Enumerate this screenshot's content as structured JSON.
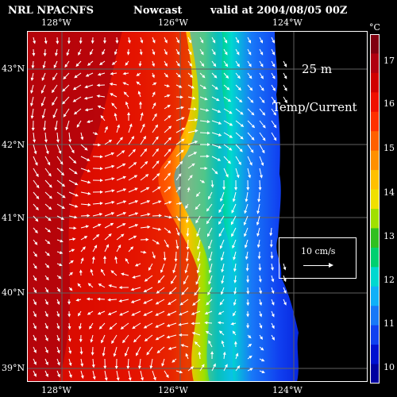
{
  "header": {
    "source": "NRL NPACNFS",
    "mode": "Nowcast",
    "valid": "valid at 2004/08/05 00Z"
  },
  "map": {
    "depth_label": "25 m",
    "variable_label": "Temp/Current",
    "longitude_ticks": [
      "128°W",
      "126°W",
      "124°W"
    ],
    "latitude_ticks": [
      "43°N",
      "42°N",
      "41°N",
      "40°N",
      "39°N"
    ],
    "vector_scale_label": "10 cm/s",
    "colors": {
      "land": "#000000",
      "vectors": "#ffffff",
      "frame": "#ffffff"
    }
  },
  "colorbar": {
    "unit": "°C",
    "tick_labels": [
      "17",
      "16",
      "15",
      "14",
      "13",
      "12",
      "11",
      "10"
    ],
    "colors": [
      "#0000a0",
      "#0010d0",
      "#1040f0",
      "#1878f8",
      "#10b0f8",
      "#00d8d0",
      "#00d070",
      "#30c020",
      "#a0e000",
      "#f0e000",
      "#ffc000",
      "#ff9000",
      "#ff6000",
      "#ff3000",
      "#f01000",
      "#d00000",
      "#b00010",
      "#800010"
    ]
  }
}
